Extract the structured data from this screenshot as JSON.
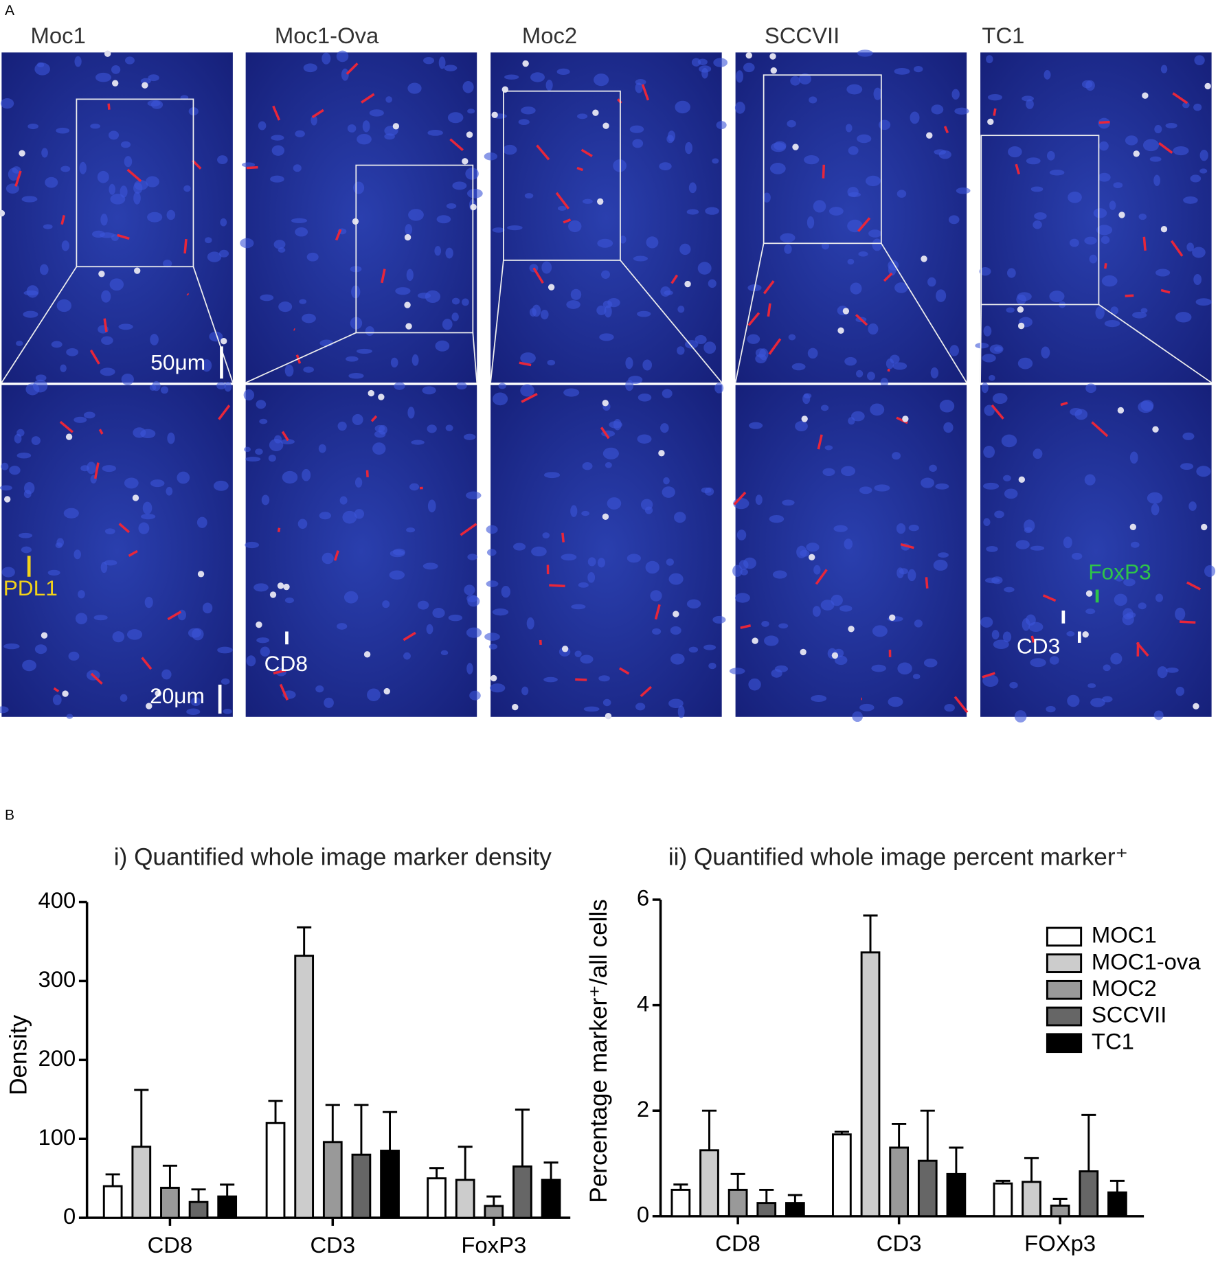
{
  "panel_a": {
    "label": "A",
    "panels": [
      {
        "title": "Moc1",
        "annotations": [
          "50μm",
          "20μm",
          "PDL1"
        ]
      },
      {
        "title": "Moc1-Ova",
        "annotations": [
          "CD8"
        ]
      },
      {
        "title": "Moc2",
        "annotations": []
      },
      {
        "title": "SCCVII",
        "annotations": []
      },
      {
        "title": "TC1",
        "annotations": [
          "FoxP3",
          "CD3"
        ]
      }
    ]
  },
  "panel_b_label": "B",
  "chart_data": [
    {
      "type": "bar",
      "title": "i) Quantified whole image marker density",
      "y_label": "Density",
      "categories": [
        "CD8",
        "CD3",
        "FoxP3"
      ],
      "ylim": [
        0,
        400
      ],
      "yticks": [
        0,
        100,
        200,
        300,
        400
      ],
      "series": [
        {
          "name": "MOC1",
          "color": "#ffffff",
          "values": [
            40,
            120,
            50
          ],
          "errors": [
            15,
            28,
            13
          ]
        },
        {
          "name": "MOC1-ova",
          "color": "#cccccc",
          "values": [
            90,
            332,
            48
          ],
          "errors": [
            72,
            36,
            42
          ]
        },
        {
          "name": "MOC2",
          "color": "#999999",
          "values": [
            38,
            96,
            15
          ],
          "errors": [
            28,
            47,
            12
          ]
        },
        {
          "name": "SCCVII",
          "color": "#666666",
          "values": [
            20,
            80,
            65
          ],
          "errors": [
            16,
            63,
            72
          ]
        },
        {
          "name": "TC1",
          "color": "#000000",
          "values": [
            27,
            85,
            48
          ],
          "errors": [
            15,
            49,
            22
          ]
        }
      ]
    },
    {
      "type": "bar",
      "title": "ii) Quantified whole image percent marker⁺",
      "y_label": "Percentage marker⁺/all cells",
      "categories": [
        "CD8",
        "CD3",
        "FOXp3"
      ],
      "ylim": [
        0,
        6
      ],
      "yticks": [
        0,
        2,
        4,
        6
      ],
      "legend": "top-right",
      "series": [
        {
          "name": "MOC1",
          "color": "#ffffff",
          "values": [
            0.5,
            1.55,
            0.62
          ],
          "errors": [
            0.1,
            0.05,
            0.05
          ]
        },
        {
          "name": "MOC1-ova",
          "color": "#cccccc",
          "values": [
            1.25,
            5.0,
            0.65
          ],
          "errors": [
            0.75,
            0.7,
            0.45
          ]
        },
        {
          "name": "MOC2",
          "color": "#999999",
          "values": [
            0.5,
            1.3,
            0.2
          ],
          "errors": [
            0.3,
            0.45,
            0.13
          ]
        },
        {
          "name": "SCCVII",
          "color": "#666666",
          "values": [
            0.25,
            1.05,
            0.85
          ],
          "errors": [
            0.25,
            0.95,
            1.07
          ]
        },
        {
          "name": "TC1",
          "color": "#000000",
          "values": [
            0.25,
            0.8,
            0.45
          ],
          "errors": [
            0.15,
            0.5,
            0.22
          ]
        }
      ]
    }
  ]
}
